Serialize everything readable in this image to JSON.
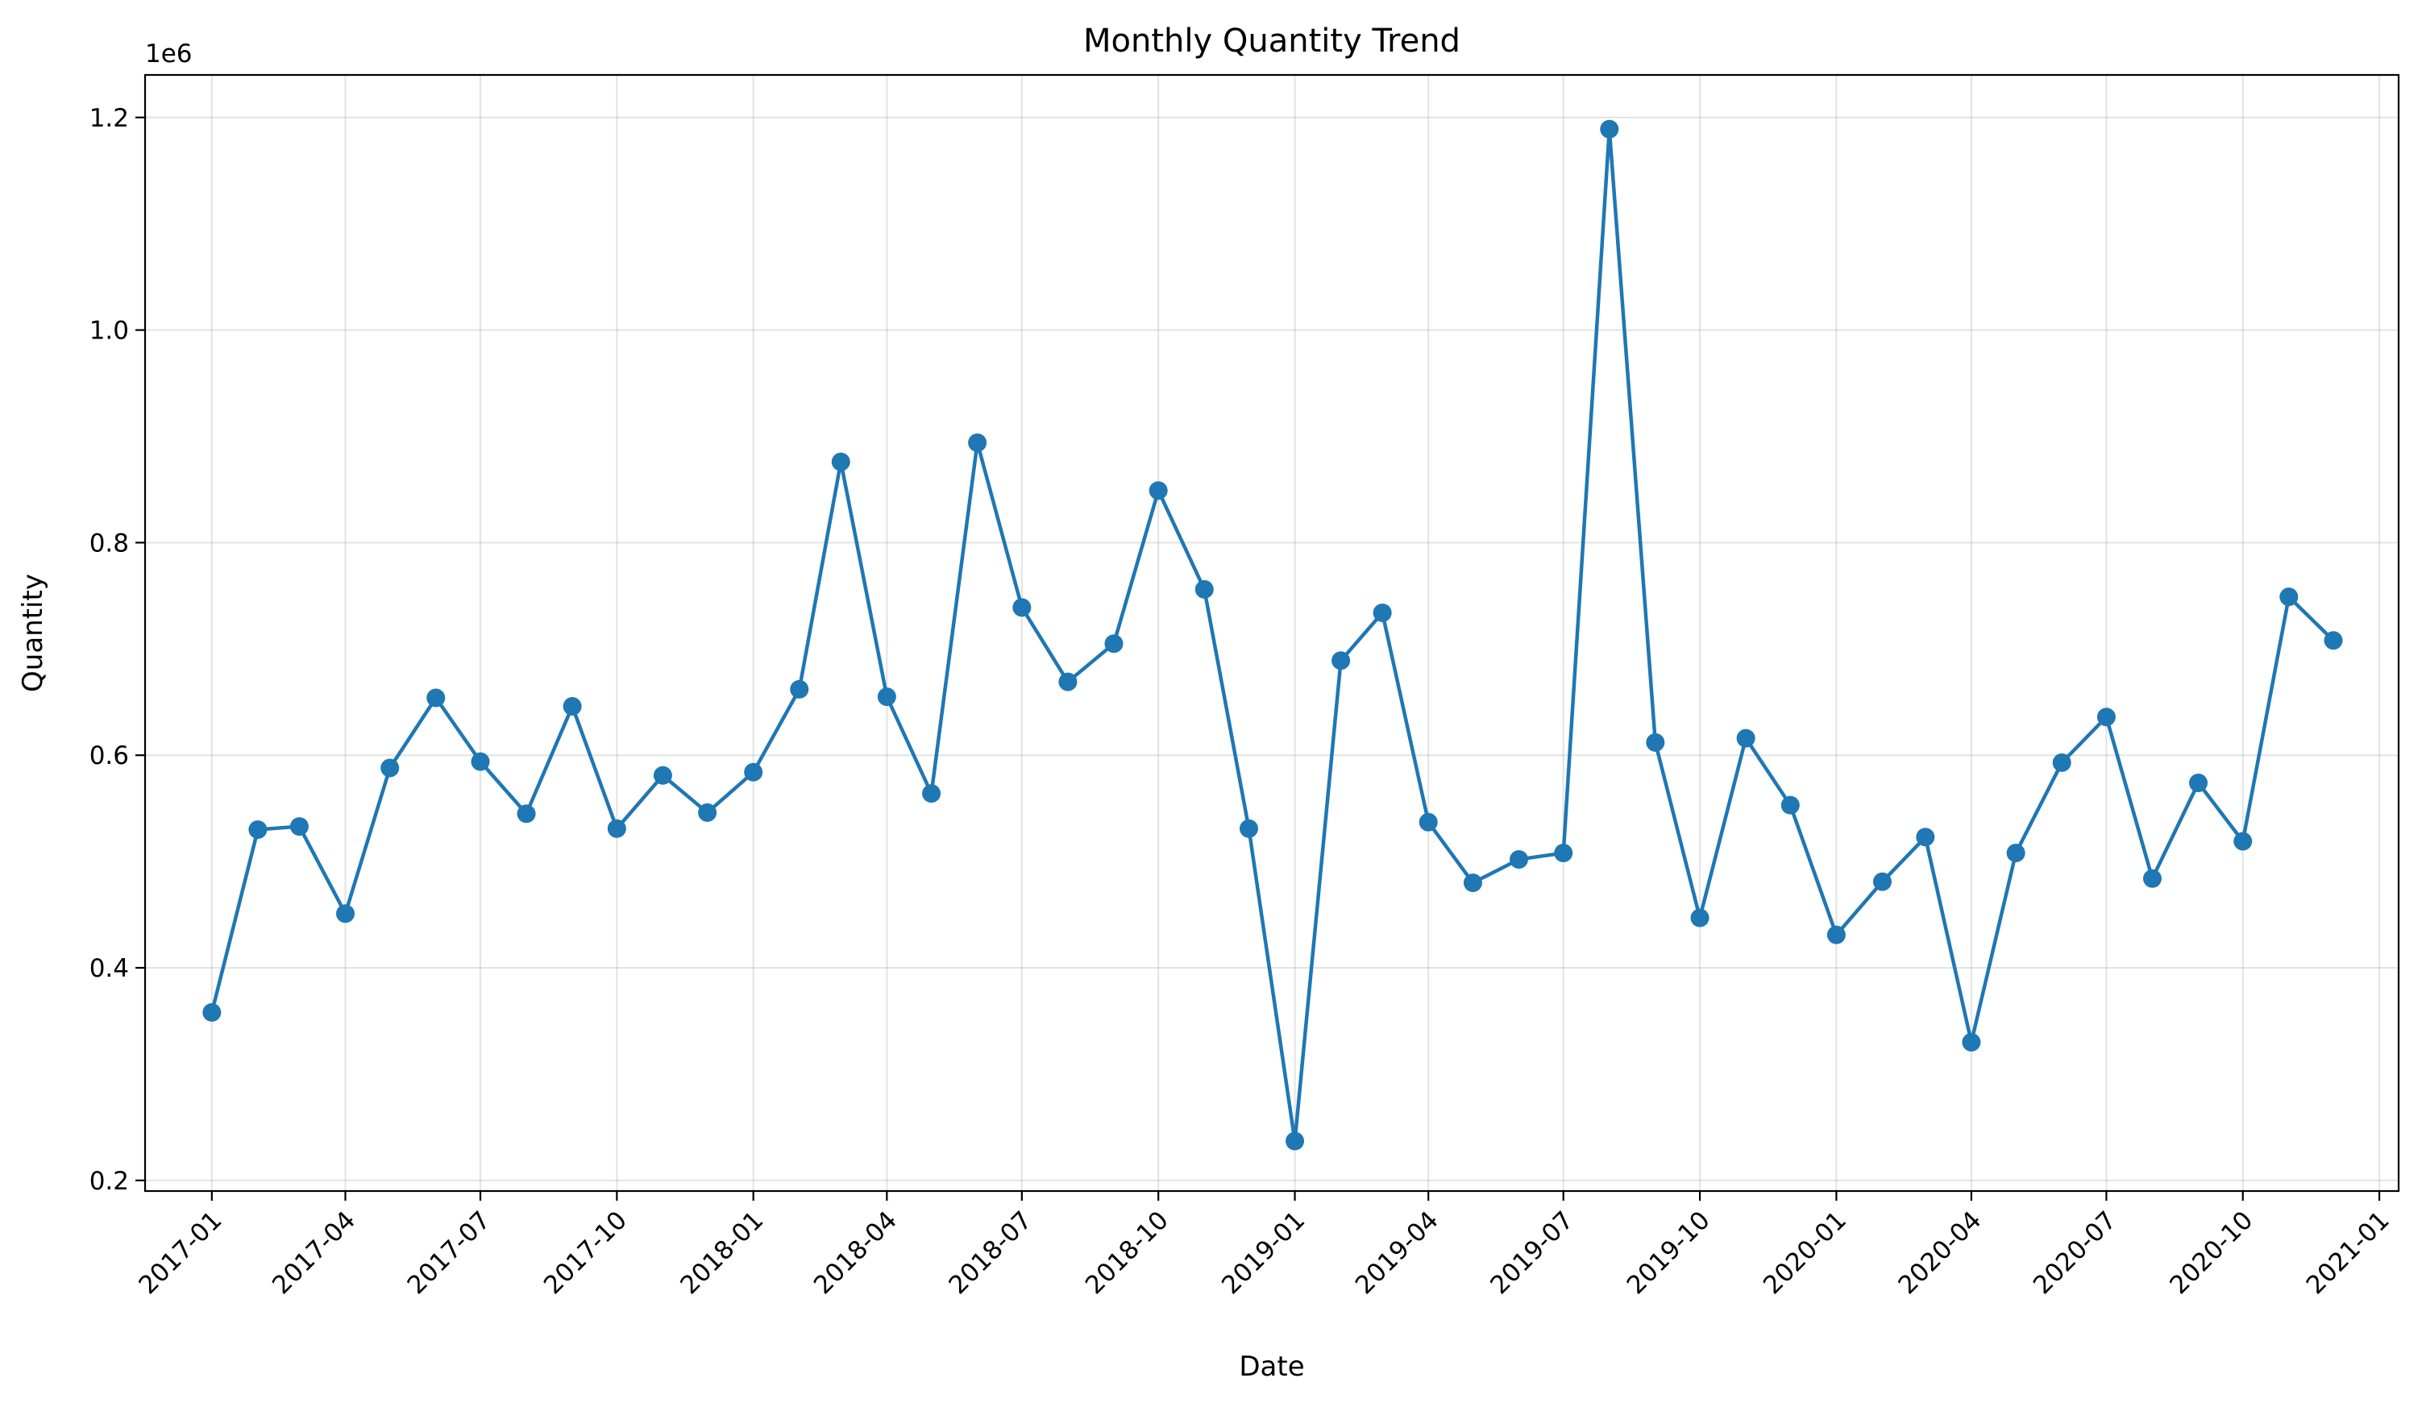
{
  "chart_data": {
    "type": "line",
    "title": "Monthly Quantity Trend",
    "xlabel": "Date",
    "ylabel": "Quantity",
    "y_offset_label": "1e6",
    "y_multiplier": 1000000,
    "ylim": [
      190000,
      1240000
    ],
    "xlim": [
      "2016-11-17",
      "2021-01-14"
    ],
    "grid": true,
    "line_color": "#1f77b4",
    "y_ticks": [
      {
        "value": 200000,
        "label": "0.2"
      },
      {
        "value": 400000,
        "label": "0.4"
      },
      {
        "value": 600000,
        "label": "0.6"
      },
      {
        "value": 800000,
        "label": "0.8"
      },
      {
        "value": 1000000,
        "label": "1.0"
      },
      {
        "value": 1200000,
        "label": "1.2"
      }
    ],
    "x_ticks": [
      "2017-01",
      "2017-04",
      "2017-07",
      "2017-10",
      "2018-01",
      "2018-04",
      "2018-07",
      "2018-10",
      "2019-01",
      "2019-04",
      "2019-07",
      "2019-10",
      "2020-01",
      "2020-04",
      "2020-07",
      "2020-10",
      "2021-01"
    ],
    "x": [
      "2017-01",
      "2017-02",
      "2017-03",
      "2017-04",
      "2017-05",
      "2017-06",
      "2017-07",
      "2017-08",
      "2017-09",
      "2017-10",
      "2017-11",
      "2017-12",
      "2018-01",
      "2018-02",
      "2018-03",
      "2018-04",
      "2018-05",
      "2018-06",
      "2018-07",
      "2018-08",
      "2018-09",
      "2018-10",
      "2018-11",
      "2018-12",
      "2019-01",
      "2019-02",
      "2019-03",
      "2019-04",
      "2019-05",
      "2019-06",
      "2019-07",
      "2019-08",
      "2019-09",
      "2019-10",
      "2019-11",
      "2019-12",
      "2020-01",
      "2020-02",
      "2020-03",
      "2020-04",
      "2020-05",
      "2020-06",
      "2020-07",
      "2020-08",
      "2020-09",
      "2020-10",
      "2020-11",
      "2020-12"
    ],
    "values": [
      358000,
      530000,
      533000,
      451000,
      588000,
      654000,
      594000,
      545000,
      646000,
      531000,
      581000,
      546000,
      584000,
      662000,
      876000,
      655000,
      564000,
      894000,
      739000,
      669000,
      705000,
      849000,
      756000,
      531000,
      237000,
      689000,
      734000,
      537000,
      480000,
      502000,
      508000,
      1189000,
      612000,
      447000,
      616000,
      553000,
      431000,
      481000,
      523000,
      330000,
      508000,
      593000,
      636000,
      484000,
      574000,
      519000,
      749000,
      708000
    ]
  }
}
